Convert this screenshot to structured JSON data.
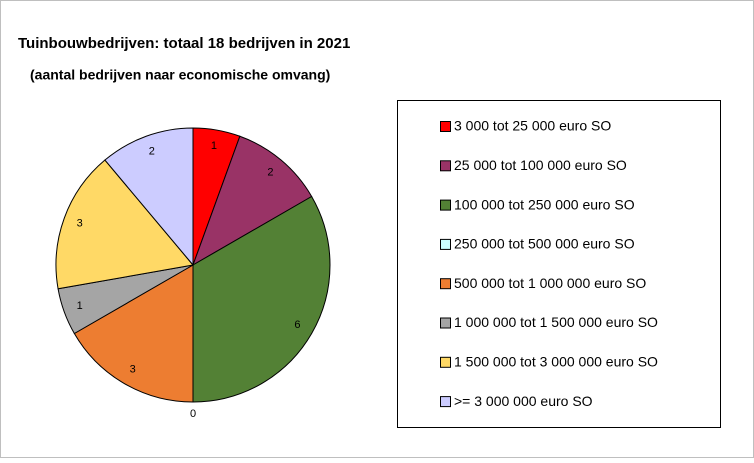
{
  "chart_data": {
    "type": "pie",
    "title": "Tuinbouwbedrijven: totaal 18 bedrijven in 2021",
    "subtitle": "(aantal bedrijven naar economische omvang)",
    "categories": [
      "3 000 tot 25 000 euro SO",
      "25 000 tot 100 000 euro SO",
      "100 000 tot 250 000 euro SO",
      "250 000 tot 500 000 euro SO",
      "500 000 tot 1 000 000 euro SO",
      "1 000 000 tot 1 500 000 euro SO",
      "1 500 000 tot 3 000 000 euro SO",
      ">= 3 000 000 euro SO"
    ],
    "values": [
      1,
      2,
      6,
      0,
      3,
      1,
      3,
      2
    ],
    "colors": [
      "#ff0000",
      "#993366",
      "#538135",
      "#ccffff",
      "#ed7d31",
      "#a5a5a5",
      "#ffd966",
      "#ccccff"
    ],
    "legend": "right"
  }
}
